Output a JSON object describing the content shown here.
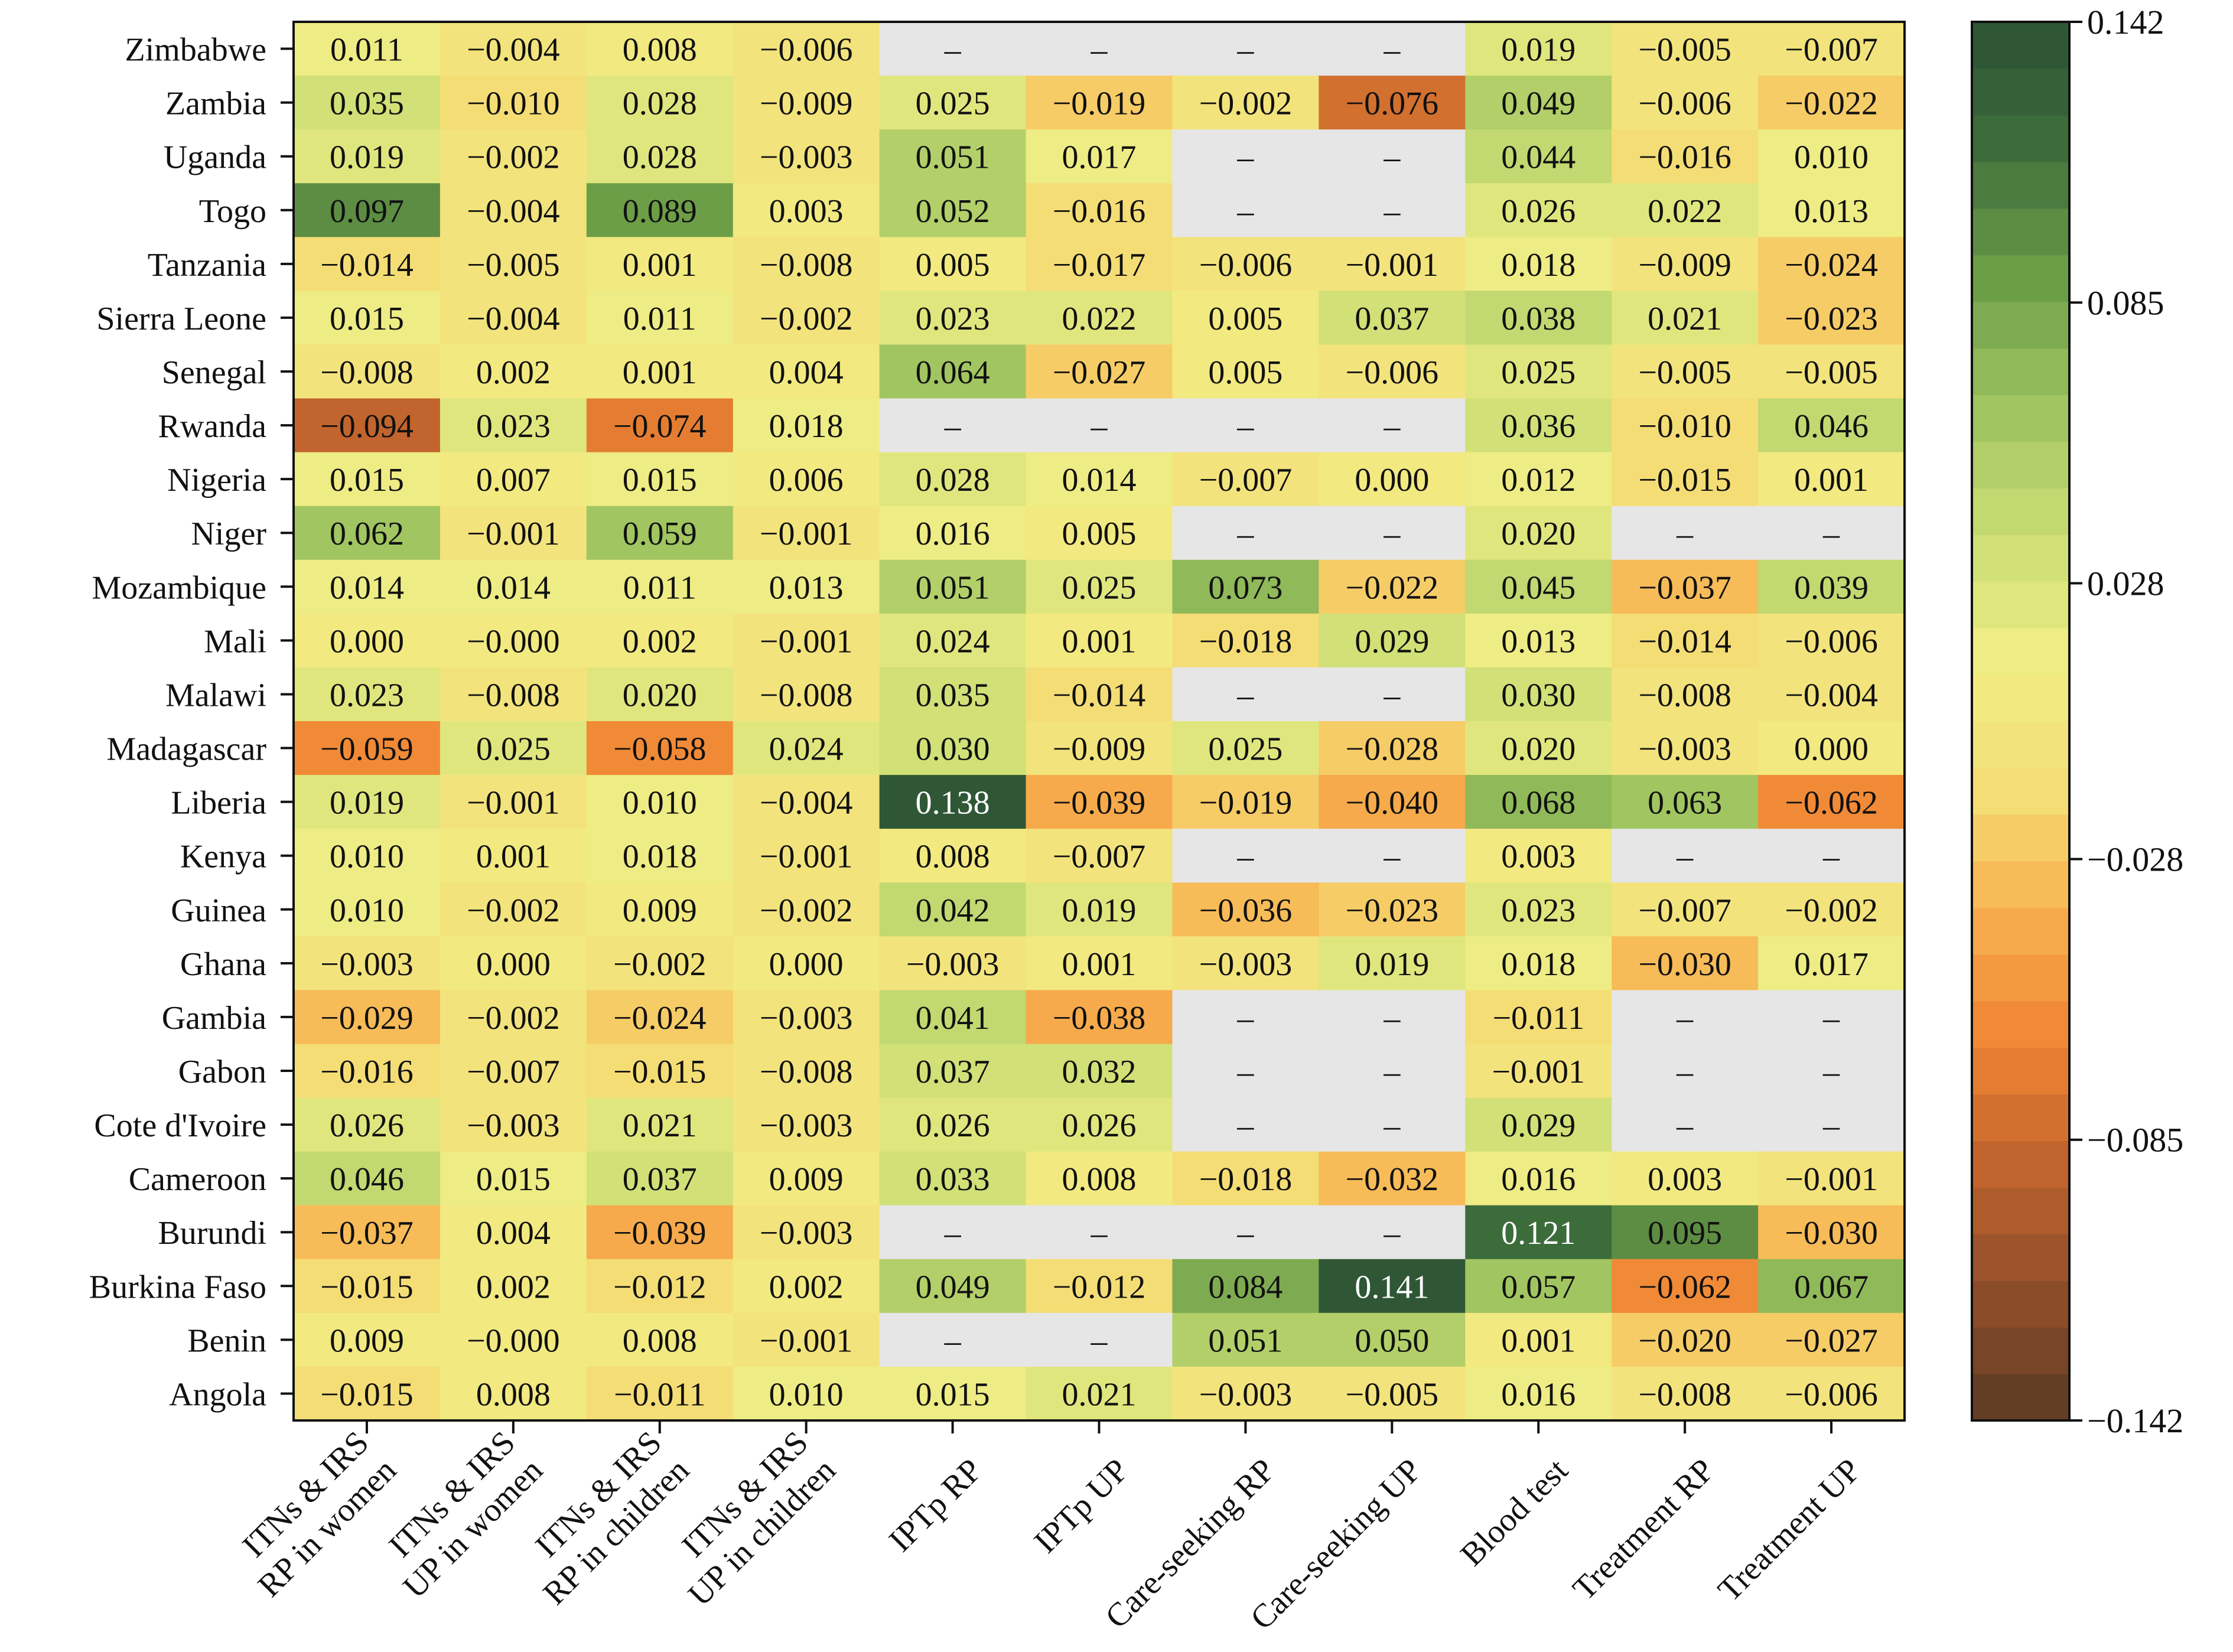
{
  "chart_data": {
    "type": "heatmap",
    "rows": [
      "Zimbabwe",
      "Zambia",
      "Uganda",
      "Togo",
      "Tanzania",
      "Sierra Leone",
      "Senegal",
      "Rwanda",
      "Nigeria",
      "Niger",
      "Mozambique",
      "Mali",
      "Malawi",
      "Madagascar",
      "Liberia",
      "Kenya",
      "Guinea",
      "Ghana",
      "Gambia",
      "Gabon",
      "Cote d'Ivoire",
      "Cameroon",
      "Burundi",
      "Burkina Faso",
      "Benin",
      "Angola"
    ],
    "columns": [
      [
        "ITNs & IRS",
        "RP in women"
      ],
      [
        "ITNs & IRS",
        "UP in women"
      ],
      [
        "ITNs & IRS",
        "RP in children"
      ],
      [
        "ITNs & IRS",
        "UP in children"
      ],
      [
        "IPTp RP"
      ],
      [
        "IPTp UP"
      ],
      [
        "Care-seeking RP"
      ],
      [
        "Care-seeking UP"
      ],
      [
        "Blood test"
      ],
      [
        "Treatment RP"
      ],
      [
        "Treatment UP"
      ]
    ],
    "cells": [
      [
        "0.011",
        "−0.004",
        "0.008",
        "−0.006",
        "–",
        "–",
        "–",
        "–",
        "0.019",
        "−0.005",
        "−0.007"
      ],
      [
        "0.035",
        "−0.010",
        "0.028",
        "−0.009",
        "0.025",
        "−0.019",
        "−0.002",
        "−0.076",
        "0.049",
        "−0.006",
        "−0.022"
      ],
      [
        "0.019",
        "−0.002",
        "0.028",
        "−0.003",
        "0.051",
        "0.017",
        "–",
        "–",
        "0.044",
        "−0.016",
        "0.010"
      ],
      [
        "0.097",
        "−0.004",
        "0.089",
        "0.003",
        "0.052",
        "−0.016",
        "–",
        "–",
        "0.026",
        "0.022",
        "0.013"
      ],
      [
        "−0.014",
        "−0.005",
        "0.001",
        "−0.008",
        "0.005",
        "−0.017",
        "−0.006",
        "−0.001",
        "0.018",
        "−0.009",
        "−0.024"
      ],
      [
        "0.015",
        "−0.004",
        "0.011",
        "−0.002",
        "0.023",
        "0.022",
        "0.005",
        "0.037",
        "0.038",
        "0.021",
        "−0.023"
      ],
      [
        "−0.008",
        "0.002",
        "0.001",
        "0.004",
        "0.064",
        "−0.027",
        "0.005",
        "−0.006",
        "0.025",
        "−0.005",
        "−0.005"
      ],
      [
        "−0.094",
        "0.023",
        "−0.074",
        "0.018",
        "–",
        "–",
        "–",
        "–",
        "0.036",
        "−0.010",
        "0.046"
      ],
      [
        "0.015",
        "0.007",
        "0.015",
        "0.006",
        "0.028",
        "0.014",
        "−0.007",
        "0.000",
        "0.012",
        "−0.015",
        "0.001"
      ],
      [
        "0.062",
        "−0.001",
        "0.059",
        "−0.001",
        "0.016",
        "0.005",
        "–",
        "–",
        "0.020",
        "–",
        "–"
      ],
      [
        "0.014",
        "0.014",
        "0.011",
        "0.013",
        "0.051",
        "0.025",
        "0.073",
        "−0.022",
        "0.045",
        "−0.037",
        "0.039"
      ],
      [
        "0.000",
        "−0.000",
        "0.002",
        "−0.001",
        "0.024",
        "0.001",
        "−0.018",
        "0.029",
        "0.013",
        "−0.014",
        "−0.006"
      ],
      [
        "0.023",
        "−0.008",
        "0.020",
        "−0.008",
        "0.035",
        "−0.014",
        "–",
        "–",
        "0.030",
        "−0.008",
        "−0.004"
      ],
      [
        "−0.059",
        "0.025",
        "−0.058",
        "0.024",
        "0.030",
        "−0.009",
        "0.025",
        "−0.028",
        "0.020",
        "−0.003",
        "0.000"
      ],
      [
        "0.019",
        "−0.001",
        "0.010",
        "−0.004",
        "0.138",
        "−0.039",
        "−0.019",
        "−0.040",
        "0.068",
        "0.063",
        "−0.062"
      ],
      [
        "0.010",
        "0.001",
        "0.018",
        "−0.001",
        "0.008",
        "−0.007",
        "–",
        "–",
        "0.003",
        "–",
        "–"
      ],
      [
        "0.010",
        "−0.002",
        "0.009",
        "−0.002",
        "0.042",
        "0.019",
        "−0.036",
        "−0.023",
        "0.023",
        "−0.007",
        "−0.002"
      ],
      [
        "−0.003",
        "0.000",
        "−0.002",
        "0.000",
        "−0.003",
        "0.001",
        "−0.003",
        "0.019",
        "0.018",
        "−0.030",
        "0.017"
      ],
      [
        "−0.029",
        "−0.002",
        "−0.024",
        "−0.003",
        "0.041",
        "−0.038",
        "–",
        "–",
        "−0.011",
        "–",
        "–"
      ],
      [
        "−0.016",
        "−0.007",
        "−0.015",
        "−0.008",
        "0.037",
        "0.032",
        "–",
        "–",
        "−0.001",
        "–",
        "–"
      ],
      [
        "0.026",
        "−0.003",
        "0.021",
        "−0.003",
        "0.026",
        "0.026",
        "–",
        "–",
        "0.029",
        "–",
        "–"
      ],
      [
        "0.046",
        "0.015",
        "0.037",
        "0.009",
        "0.033",
        "0.008",
        "−0.018",
        "−0.032",
        "0.016",
        "0.003",
        "−0.001"
      ],
      [
        "−0.037",
        "0.004",
        "−0.039",
        "−0.003",
        "–",
        "–",
        "–",
        "–",
        "0.121",
        "0.095",
        "−0.030"
      ],
      [
        "−0.015",
        "0.002",
        "−0.012",
        "0.002",
        "0.049",
        "−0.012",
        "0.084",
        "0.141",
        "0.057",
        "−0.062",
        "0.067"
      ],
      [
        "0.009",
        "−0.000",
        "0.008",
        "−0.001",
        "–",
        "–",
        "0.051",
        "0.050",
        "0.001",
        "−0.020",
        "−0.027"
      ],
      [
        "−0.015",
        "0.008",
        "−0.011",
        "0.010",
        "0.015",
        "0.021",
        "−0.003",
        "−0.005",
        "0.016",
        "−0.008",
        "−0.006"
      ]
    ],
    "colorbar": {
      "min": -0.142,
      "max": 0.142,
      "ticks": [
        0.142,
        0.085,
        0.028,
        -0.028,
        -0.085,
        -0.142
      ],
      "tick_labels": [
        "0.142",
        "0.085",
        "0.028",
        "−0.028",
        "−0.085",
        "−0.142"
      ],
      "levels": 30
    },
    "colors": {
      "missing": "#e6e6e6",
      "scale": [
        "#5a3a22",
        "#8f4e2b",
        "#c0632d",
        "#f08533",
        "#f7b14f",
        "#f5df78",
        "#f0ed85",
        "#c9dc73",
        "#9cc25f",
        "#6b9d48",
        "#3f6e3b",
        "#2c5235"
      ]
    },
    "grid": false
  }
}
